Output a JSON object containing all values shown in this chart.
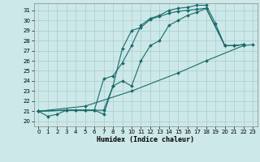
{
  "xlabel": "Humidex (Indice chaleur)",
  "bg_color": "#cce8e8",
  "grid_color": "#aacccc",
  "line_color": "#1a6b6b",
  "xlim": [
    -0.5,
    23.5
  ],
  "ylim": [
    19.5,
    31.7
  ],
  "xticks": [
    0,
    1,
    2,
    3,
    4,
    5,
    6,
    7,
    8,
    9,
    10,
    11,
    12,
    13,
    14,
    15,
    16,
    17,
    18,
    19,
    20,
    21,
    22,
    23
  ],
  "yticks": [
    20,
    21,
    22,
    23,
    24,
    25,
    26,
    27,
    28,
    29,
    30,
    31
  ],
  "series1": {
    "x": [
      0,
      1,
      2,
      3,
      4,
      5,
      6,
      7,
      8,
      9,
      10,
      11,
      12,
      13,
      14,
      15,
      16,
      17,
      18,
      20,
      21,
      22
    ],
    "y": [
      21,
      20.5,
      20.7,
      21.1,
      21.1,
      21.1,
      21.1,
      21.1,
      23.5,
      27.2,
      29.0,
      29.3,
      30.1,
      30.4,
      30.7,
      30.9,
      31.0,
      31.1,
      31.2,
      27.5,
      27.5,
      27.6
    ]
  },
  "series2": {
    "x": [
      0,
      3,
      4,
      5,
      6,
      7,
      8,
      9,
      10,
      11,
      12,
      13,
      14,
      15,
      16,
      17,
      18,
      19,
      20,
      21,
      22
    ],
    "y": [
      21,
      21.1,
      21.1,
      21.1,
      21.1,
      24.2,
      24.5,
      25.8,
      27.5,
      29.5,
      30.2,
      30.5,
      31.0,
      31.2,
      31.3,
      31.5,
      31.5,
      29.7,
      27.5,
      27.5,
      27.6
    ]
  },
  "series3": {
    "x": [
      0,
      3,
      6,
      7,
      8,
      9,
      10,
      11,
      12,
      13,
      14,
      15,
      16,
      17,
      18,
      20,
      21,
      22
    ],
    "y": [
      21,
      21.1,
      21.1,
      20.7,
      23.5,
      24.0,
      23.5,
      26.0,
      27.5,
      28.0,
      29.5,
      30.0,
      30.5,
      30.8,
      31.2,
      27.5,
      27.5,
      27.6
    ]
  },
  "series4": {
    "x": [
      0,
      5,
      10,
      15,
      18,
      22,
      23
    ],
    "y": [
      21,
      21.5,
      23.0,
      24.8,
      26.0,
      27.5,
      27.6
    ]
  }
}
